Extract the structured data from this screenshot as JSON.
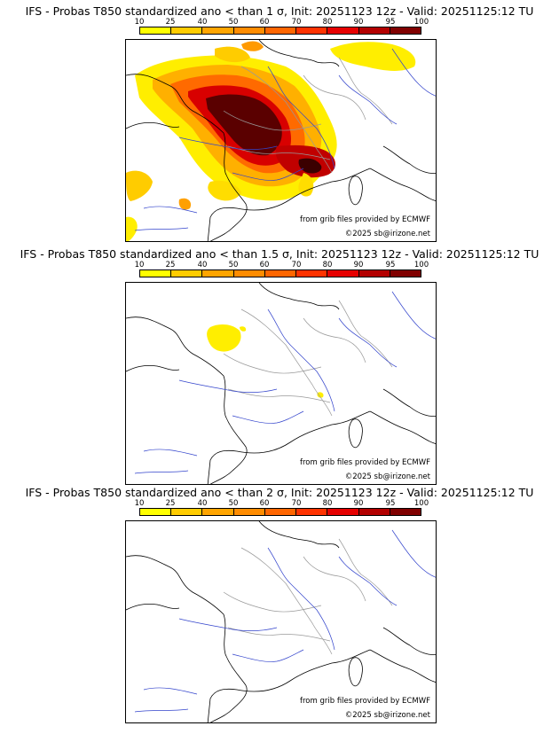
{
  "legend": {
    "ticks": [
      "10",
      "25",
      "40",
      "50",
      "60",
      "70",
      "80",
      "90",
      "95",
      "100"
    ],
    "colors": [
      "#ffff00",
      "#ffcc00",
      "#ffa500",
      "#ff8c00",
      "#ff6600",
      "#ff3300",
      "#e60000",
      "#b30000",
      "#800000",
      "#4d0000"
    ]
  },
  "panels": [
    {
      "title": "IFS - Probas T850  standardized ano < than 1 σ, Init: 20251123 12z - Valid: 20251125:12 TU",
      "source": "from grib files provided by ECMWF",
      "copyright": "©2025 sb@irizone.net"
    },
    {
      "title": "IFS - Probas T850  standardized ano < than 1.5 σ, Init: 20251123 12z - Valid: 20251125:12 TU",
      "source": "from grib files provided by ECMWF",
      "copyright": "©2025 sb@irizone.net"
    },
    {
      "title": "IFS - Probas T850  standardized ano < than 2 σ, Init: 20251123 12z - Valid: 20251125:12 TU",
      "source": "from grib files provided by ECMWF",
      "copyright": "©2025 sb@irizone.net"
    }
  ]
}
